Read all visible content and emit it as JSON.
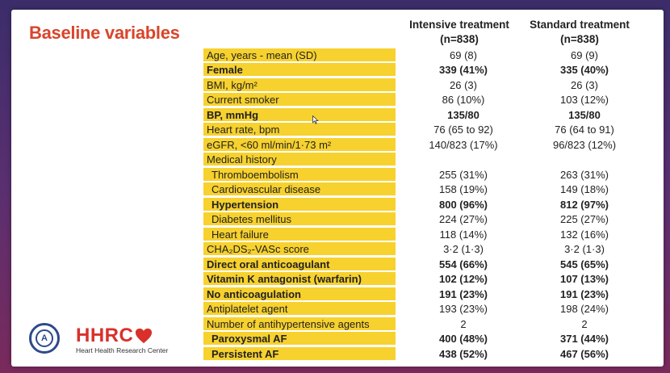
{
  "title": "Baseline variables",
  "columns": [
    {
      "name": "Intensive treatment",
      "n": "(n=838)"
    },
    {
      "name": "Standard treatment",
      "n": "(n=838)"
    }
  ],
  "rows": [
    {
      "label": "Age, years  - mean (SD)",
      "v1": "69 (8)",
      "v2": "69 (9)"
    },
    {
      "label": "Female",
      "v1": "339 (41%)",
      "v2": "335 (40%)"
    },
    {
      "label": "BMI, kg/m²",
      "v1": "26 (3)",
      "v2": "26 (3)"
    },
    {
      "label": "Current smoker",
      "v1": "86 (10%)",
      "v2": "103 (12%)"
    },
    {
      "label": "BP, mmHg",
      "v1": "135/80",
      "v2": "135/80"
    },
    {
      "label": "Heart rate, bpm",
      "v1": "76 (65 to 92)",
      "v2": "76 (64 to 91)"
    },
    {
      "label": "eGFR, <60 ml/min/1·73 m²",
      "v1": "140/823 (17%)",
      "v2": "96/823 (12%)"
    },
    {
      "label": "Medical history",
      "v1": "",
      "v2": ""
    },
    {
      "label": "Thromboembolism",
      "v1": "255 (31%)",
      "v2": "263 (31%)"
    },
    {
      "label": "Cardiovascular disease",
      "v1": "158 (19%)",
      "v2": "149 (18%)"
    },
    {
      "label": "Hypertension",
      "v1": "800 (96%)",
      "v2": "812 (97%)"
    },
    {
      "label": "Diabetes mellitus",
      "v1": "224 (27%)",
      "v2": "225 (27%)"
    },
    {
      "label": "Heart failure",
      "v1": "118 (14%)",
      "v2": "132 (16%)"
    },
    {
      "label": "CHA₂DS₂-VASc score",
      "v1": "3·2 (1·3)",
      "v2": "3·2 (1·3)"
    },
    {
      "label": "Direct oral anticoagulant",
      "v1": "554 (66%)",
      "v2": "545 (65%)"
    },
    {
      "label": "Vitamin K antagonist (warfarin)",
      "v1": "102 (12%)",
      "v2": "107 (13%)"
    },
    {
      "label": "No anticoagulation",
      "v1": "191 (23%)",
      "v2": "191 (23%)"
    },
    {
      "label": "Antiplatelet agent",
      "v1": "193 (23%)",
      "v2": "198 (24%)"
    },
    {
      "label": "Number of antihypertensive agents",
      "v1": "2",
      "v2": "2"
    },
    {
      "label": "Paroxysmal AF",
      "v1": "400 (48%)",
      "v2": "371 (44%)"
    },
    {
      "label": "Persistent AF",
      "v1": "438 (52%)",
      "v2": "467 (56%)"
    }
  ],
  "logo": {
    "name": "HHRC",
    "subtitle": "Heart Health Research Center",
    "seal_letter": "A"
  },
  "colors": {
    "title": "#d9452b",
    "label_bg": "#f7d12e",
    "logo_red": "#d9302c"
  }
}
